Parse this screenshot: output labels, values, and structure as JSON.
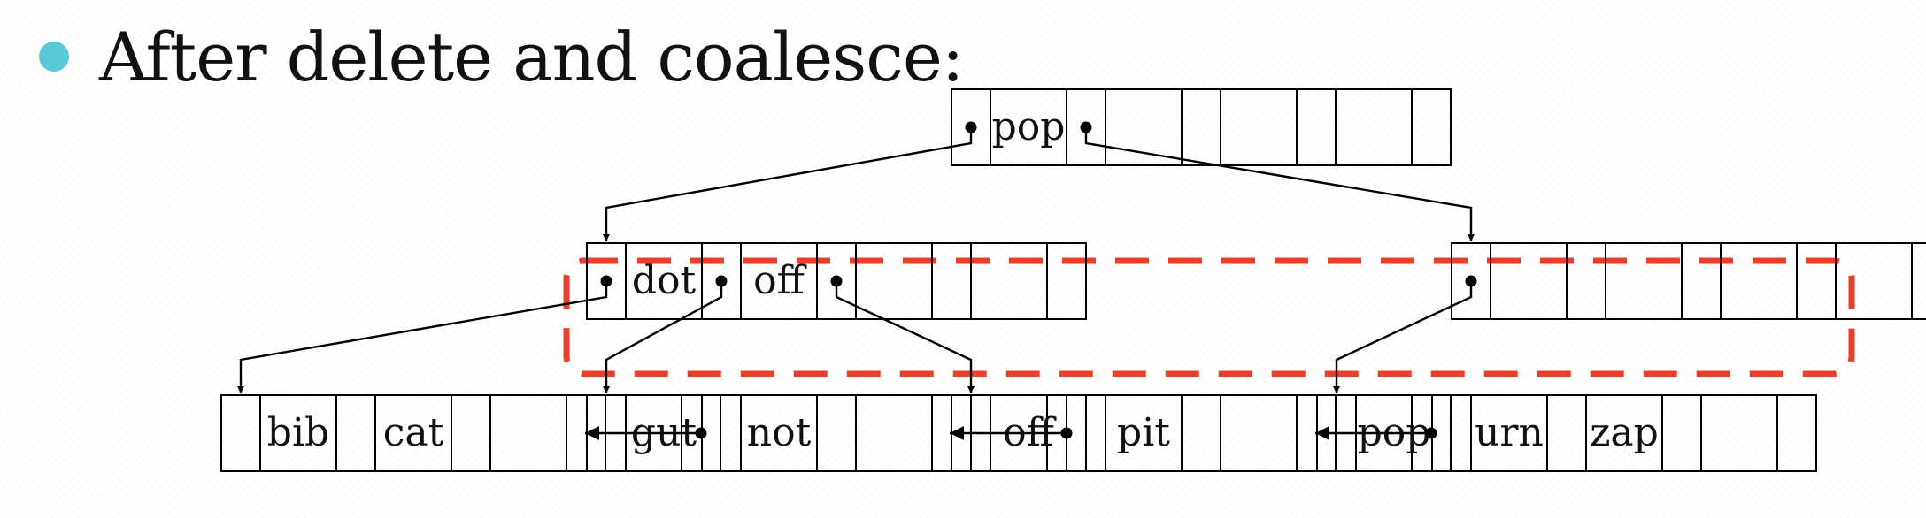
{
  "heading": {
    "text": "After delete and coalesce:"
  },
  "tree": {
    "root": {
      "keys": [
        "pop"
      ]
    },
    "internal": [
      {
        "keys": [
          "dot",
          "off"
        ]
      },
      {
        "keys": []
      }
    ],
    "leaves": [
      {
        "keys": [
          "bib",
          "cat"
        ]
      },
      {
        "keys": [
          "gut",
          "not"
        ]
      },
      {
        "keys": [
          "off",
          "pit"
        ]
      },
      {
        "keys": [
          "pop",
          "urn",
          "zap"
        ]
      }
    ]
  },
  "colors": {
    "bullet": "#5bc8d8",
    "highlight": "#e8402a",
    "lines": "#000000"
  }
}
